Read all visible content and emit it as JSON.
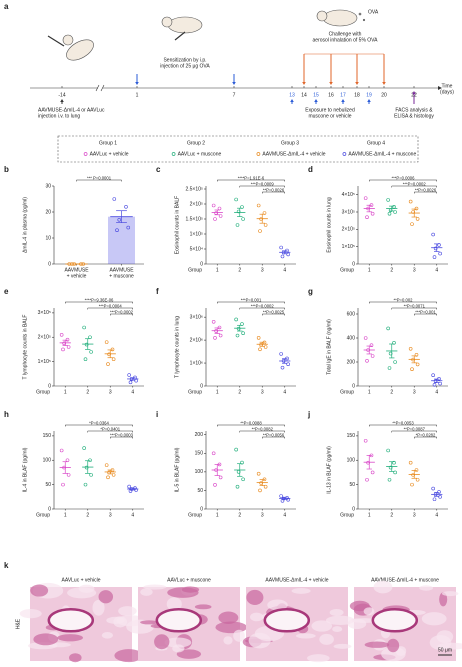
{
  "panel_a": {
    "letter": "a",
    "days": [
      "-14",
      "1",
      "7",
      "13",
      "14",
      "15",
      "16",
      "17",
      "18",
      "19",
      "20",
      "22"
    ],
    "injection": [
      "AAVMUSE-ΔmIL-4 or AAVLuc",
      "injection i.v. to lung"
    ],
    "sensitization": [
      "Sensitization by i.p.",
      "injection of 25 μg OVA"
    ],
    "challenge": [
      "Challenge with",
      "aerosol inhalation of 5% OVA"
    ],
    "exposure": [
      "Exposure to nebulized",
      "muscone or vehicle"
    ],
    "analysis": [
      "FACS analysis &",
      "ELISA & histology"
    ],
    "time": [
      "Time",
      "(days)"
    ],
    "ova": "OVA"
  },
  "legend": {
    "groups": [
      "Group 1",
      "Group 2",
      "Group 3",
      "Group 4"
    ],
    "items": [
      "AAVLuc + vehicle",
      "AAVLuc + muscone",
      "AAVMUSE-ΔmIL-4 + vehicle",
      "AAVMUSE-ΔmIL-4 + muscone"
    ],
    "colors": [
      "#d946c8",
      "#1fae7a",
      "#e8891c",
      "#4a4ae0"
    ]
  },
  "chart_data": [
    {
      "letter": "b",
      "type": "bar",
      "ylabel": "ΔmIL-4 in plasma (pg/ml)",
      "categories": [
        [
          "AAVMUSE",
          "+ vehicle"
        ],
        [
          "AAVMUSE",
          "+ muscone"
        ]
      ],
      "ylim": [
        0,
        30
      ],
      "yticks": [
        0,
        10,
        20,
        30
      ],
      "groups": [
        {
          "color": "#e8891c",
          "points": [
            0,
            0,
            0,
            0,
            0
          ],
          "mean": 0,
          "error": 0
        },
        {
          "color": "#4a4ae0",
          "points": [
            25,
            22,
            17,
            14,
            13
          ],
          "mean": 18.2,
          "error": 2.3
        }
      ],
      "annotations": [
        "*** P=0.0001"
      ]
    },
    {
      "letter": "c",
      "type": "dot",
      "ylabel": "Eosinophil counts in BALF",
      "xlabel": "Group",
      "categories": [
        "1",
        "2",
        "3",
        "4"
      ],
      "ylim": [
        0,
        260000
      ],
      "yticks": [
        0,
        {
          "value": 50000,
          "label": "5×10⁴"
        },
        {
          "value": 100000,
          "label": "1×10⁵"
        },
        {
          "value": 150000,
          "label": "1.5×10⁵"
        },
        {
          "value": 200000,
          "label": "2×10⁵"
        },
        {
          "value": 250000,
          "label": "2.5×10⁵"
        }
      ],
      "groups": [
        {
          "color": "#d946c8",
          "points": [
            195000,
            185000,
            170000,
            160000,
            150000
          ],
          "mean": 172000,
          "error": 8000
        },
        {
          "color": "#1fae7a",
          "points": [
            215000,
            190000,
            175000,
            150000,
            130000
          ],
          "mean": 172000,
          "error": 14000
        },
        {
          "color": "#e8891c",
          "points": [
            195000,
            170000,
            150000,
            130000,
            110000
          ],
          "mean": 151000,
          "error": 15000
        },
        {
          "color": "#4a4ae0",
          "points": [
            55000,
            45000,
            38000,
            32000,
            25000
          ],
          "mean": 39000,
          "error": 5000
        }
      ],
      "annotations": [
        "****P=1.91E-6",
        "***P=0.0009",
        "**P=0.0026"
      ]
    },
    {
      "letter": "d",
      "type": "dot",
      "ylabel": "Eosinophil counts in lung",
      "xlabel": "Group",
      "categories": [
        "1",
        "2",
        "3",
        "4"
      ],
      "ylim": [
        0,
        450000
      ],
      "yticks": [
        0,
        {
          "value": 100000,
          "label": "1×10⁵"
        },
        {
          "value": 200000,
          "label": "2×10⁵"
        },
        {
          "value": 300000,
          "label": "3×10⁵"
        },
        {
          "value": 400000,
          "label": "4×10⁵"
        }
      ],
      "groups": [
        {
          "color": "#d946c8",
          "points": [
            380000,
            340000,
            320000,
            290000,
            270000
          ],
          "mean": 320000,
          "error": 19000
        },
        {
          "color": "#1fae7a",
          "points": [
            370000,
            330000,
            310000,
            300000,
            290000
          ],
          "mean": 320000,
          "error": 14000
        },
        {
          "color": "#e8891c",
          "points": [
            360000,
            320000,
            300000,
            260000,
            230000
          ],
          "mean": 294000,
          "error": 23000
        },
        {
          "color": "#4a4ae0",
          "points": [
            170000,
            110000,
            90000,
            60000,
            40000
          ],
          "mean": 94000,
          "error": 22000
        }
      ],
      "annotations": [
        "***P=0.0006",
        "***P=0.0002",
        "**P=0.0026"
      ]
    },
    {
      "letter": "e",
      "type": "dot",
      "ylabel": "T lymphocyte counts in BALF",
      "xlabel": "Group",
      "categories": [
        "1",
        "2",
        "3",
        "4"
      ],
      "ylim": [
        0,
        320000
      ],
      "yticks": [
        0,
        {
          "value": 100000,
          "label": "1×10⁵"
        },
        {
          "value": 200000,
          "label": "2×10⁵"
        },
        {
          "value": 300000,
          "label": "3×10⁵"
        }
      ],
      "groups": [
        {
          "color": "#d946c8",
          "points": [
            210000,
            190000,
            175000,
            160000,
            150000
          ],
          "mean": 177000,
          "error": 11000
        },
        {
          "color": "#1fae7a",
          "points": [
            240000,
            200000,
            170000,
            140000,
            110000
          ],
          "mean": 172000,
          "error": 22000
        },
        {
          "color": "#e8891c",
          "points": [
            180000,
            150000,
            130000,
            110000,
            90000
          ],
          "mean": 132000,
          "error": 16000
        },
        {
          "color": "#4a4ae0",
          "points": [
            45000,
            35000,
            28000,
            22000,
            15000
          ],
          "mean": 29000,
          "error": 5000
        }
      ],
      "annotations": [
        "****P=9.36E-06",
        "***P=0.0004",
        "***P=0.0002"
      ]
    },
    {
      "letter": "f",
      "type": "dot",
      "ylabel": "T lymphocyte counts in lung",
      "xlabel": "Group",
      "categories": [
        "1",
        "2",
        "3",
        "4"
      ],
      "ylim": [
        0,
        3400000
      ],
      "yticks": [
        0,
        {
          "value": 1000000,
          "label": "1×10⁶"
        },
        {
          "value": 2000000,
          "label": "2×10⁶"
        },
        {
          "value": 3000000,
          "label": "3×10⁶"
        }
      ],
      "groups": [
        {
          "color": "#d946c8",
          "points": [
            2800000,
            2550000,
            2400000,
            2200000,
            2100000
          ],
          "mean": 2410000,
          "error": 120000
        },
        {
          "color": "#1fae7a",
          "points": [
            2900000,
            2700000,
            2500000,
            2300000,
            2200000
          ],
          "mean": 2520000,
          "error": 125000
        },
        {
          "color": "#e8891c",
          "points": [
            2100000,
            1900000,
            1800000,
            1700000,
            1600000
          ],
          "mean": 1820000,
          "error": 90000
        },
        {
          "color": "#4a4ae0",
          "points": [
            1400000,
            1200000,
            1100000,
            950000,
            800000
          ],
          "mean": 1090000,
          "error": 100000
        }
      ],
      "annotations": [
        "***P=0.001",
        "***P=0.0002",
        "**P=0.0025"
      ]
    },
    {
      "letter": "g",
      "type": "dot",
      "ylabel": "Total IgE in BALF (ng/ml)",
      "xlabel": "Group",
      "categories": [
        "1",
        "2",
        "3",
        "4"
      ],
      "ylim": [
        0,
        650
      ],
      "yticks": [
        0,
        200,
        400,
        600
      ],
      "groups": [
        {
          "color": "#d946c8",
          "points": [
            400,
            340,
            300,
            250,
            210
          ],
          "mean": 300,
          "error": 33
        },
        {
          "color": "#1fae7a",
          "points": [
            480,
            360,
            270,
            200,
            150
          ],
          "mean": 292,
          "error": 58
        },
        {
          "color": "#e8891c",
          "points": [
            310,
            260,
            220,
            180,
            140
          ],
          "mean": 222,
          "error": 29
        },
        {
          "color": "#4a4ae0",
          "points": [
            90,
            60,
            40,
            20,
            10
          ],
          "mean": 44,
          "error": 14
        }
      ],
      "annotations": [
        "**P=0.002",
        "**P=0.0071",
        "***P=0.001"
      ]
    },
    {
      "letter": "h",
      "type": "dot",
      "ylabel": "IL-4 in BLAF (pg/ml)",
      "xlabel": "Group",
      "categories": [
        "1",
        "2",
        "3",
        "4"
      ],
      "ylim": [
        0,
        160
      ],
      "yticks": [
        0,
        50,
        100,
        150
      ],
      "groups": [
        {
          "color": "#d946c8",
          "points": [
            120,
            100,
            85,
            70,
            50
          ],
          "mean": 85,
          "error": 12
        },
        {
          "color": "#1fae7a",
          "points": [
            125,
            100,
            85,
            70,
            50
          ],
          "mean": 86,
          "error": 13
        },
        {
          "color": "#e8891c",
          "points": [
            90,
            80,
            75,
            70,
            65
          ],
          "mean": 76,
          "error": 4
        },
        {
          "color": "#4a4ae0",
          "points": [
            46,
            43,
            41,
            39,
            37
          ],
          "mean": 41,
          "error": 2
        }
      ],
      "annotations": [
        "*P=0.0364",
        "*P=0.0401",
        "***P=0.0003"
      ]
    },
    {
      "letter": "i",
      "type": "dot",
      "ylabel": "IL-5 in BLAF (pg/ml)",
      "xlabel": "Group",
      "categories": [
        "1",
        "2",
        "3",
        "4"
      ],
      "ylim": [
        0,
        210
      ],
      "yticks": [
        0,
        50,
        100,
        150,
        200
      ],
      "groups": [
        {
          "color": "#d946c8",
          "points": [
            150,
            120,
            105,
            85,
            65
          ],
          "mean": 105,
          "error": 15
        },
        {
          "color": "#1fae7a",
          "points": [
            160,
            125,
            100,
            80,
            60
          ],
          "mean": 105,
          "error": 17
        },
        {
          "color": "#e8891c",
          "points": [
            95,
            80,
            70,
            60,
            50
          ],
          "mean": 71,
          "error": 8
        },
        {
          "color": "#4a4ae0",
          "points": [
            35,
            30,
            28,
            25,
            22
          ],
          "mean": 28,
          "error": 2
        }
      ],
      "annotations": [
        "**P=0.0088",
        "**P=0.0082",
        "**P=0.0056"
      ]
    },
    {
      "letter": "j",
      "type": "dot",
      "ylabel": "IL-13 in BLAF (pg/ml)",
      "xlabel": "Group",
      "categories": [
        "1",
        "2",
        "3",
        "4"
      ],
      "ylim": [
        0,
        160
      ],
      "yticks": [
        0,
        50,
        100,
        150
      ],
      "groups": [
        {
          "color": "#d946c8",
          "points": [
            140,
            110,
            95,
            75,
            60
          ],
          "mean": 96,
          "error": 14
        },
        {
          "color": "#1fae7a",
          "points": [
            120,
            95,
            85,
            75,
            60
          ],
          "mean": 87,
          "error": 10
        },
        {
          "color": "#e8891c",
          "points": [
            95,
            80,
            70,
            60,
            50
          ],
          "mean": 71,
          "error": 8
        },
        {
          "color": "#4a4ae0",
          "points": [
            42,
            35,
            30,
            25,
            20
          ],
          "mean": 30,
          "error": 4
        }
      ],
      "annotations": [
        "**P=0.0053",
        "**P=0.0087",
        "*P=0.0282"
      ]
    }
  ],
  "panel_k": {
    "letter": "k",
    "labels": [
      "AAVLuc + vehicle",
      "AAVLuc + muscone",
      "AAVMUSE-ΔmIL-4 + vehicle",
      "AAVMUSE-ΔmIL-4 + muscone"
    ],
    "stain": "H&E",
    "scale": "50 μm"
  }
}
